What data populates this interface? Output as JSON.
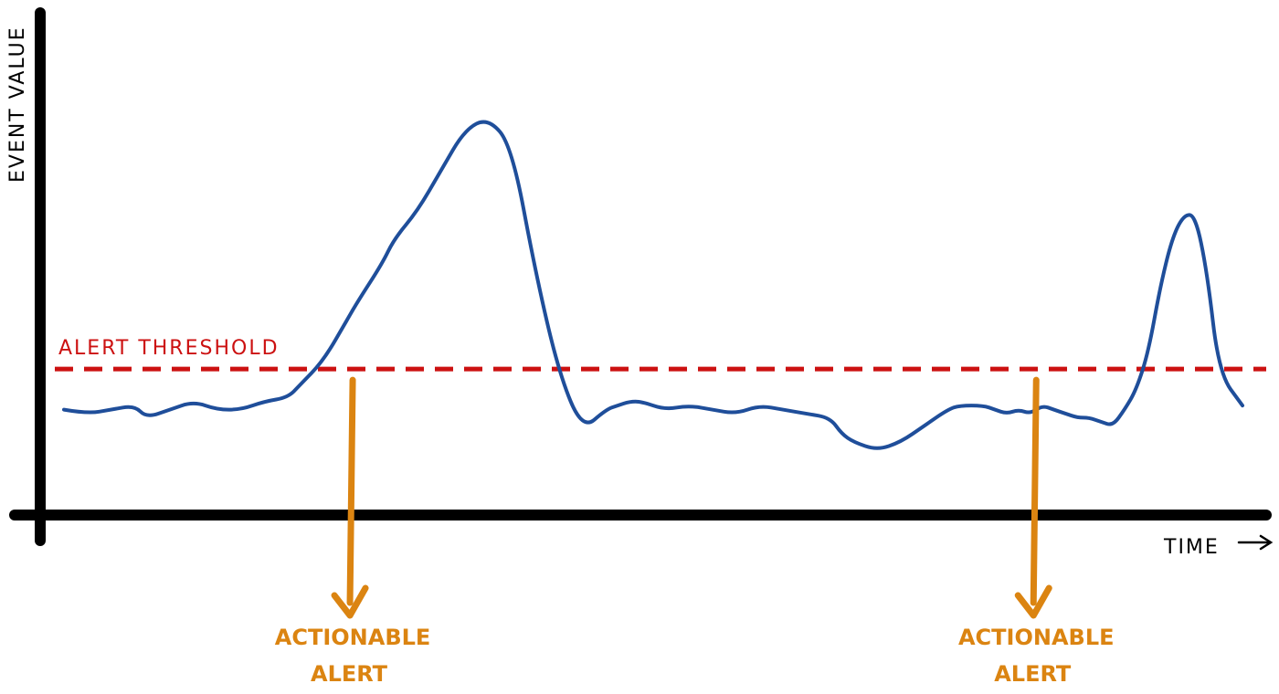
{
  "chart_data": {
    "type": "line",
    "title": "",
    "xlabel": "TIME",
    "ylabel": "EVENT VALUE",
    "x_range": [
      0,
      100
    ],
    "y_range": [
      0,
      100
    ],
    "grid": false,
    "series": [
      {
        "color": "#1f4e9a",
        "x": [
          0,
          2,
          4,
          6,
          7,
          9,
          11,
          13,
          15,
          17,
          19,
          20,
          22,
          24,
          25,
          27,
          28,
          30,
          32,
          34,
          36,
          38,
          40,
          42,
          44,
          46,
          47,
          48,
          49,
          51,
          53,
          55,
          57,
          59,
          61,
          63,
          65,
          66,
          67,
          69,
          71,
          73,
          75,
          76,
          78,
          79,
          80,
          81,
          82,
          83,
          84,
          85,
          86,
          87,
          88,
          89,
          90,
          91,
          92,
          93,
          94,
          95,
          96,
          97,
          98,
          100
        ],
        "y": [
          26,
          25,
          26,
          27,
          24,
          26,
          28,
          26,
          26,
          28,
          29,
          32,
          38,
          48,
          53,
          62,
          68,
          75,
          85,
          95,
          98,
          91,
          60,
          35,
          21,
          26,
          27,
          28,
          28,
          26,
          27,
          26,
          25,
          27,
          26,
          25,
          24,
          20,
          18,
          16,
          18,
          22,
          26,
          27,
          27,
          26,
          25,
          26,
          25,
          27,
          26,
          25,
          24,
          24,
          23,
          22,
          26,
          31,
          40,
          56,
          68,
          74,
          74,
          60,
          35,
          27
        ]
      }
    ],
    "threshold": {
      "label": "ALERT THRESHOLD",
      "value": 36,
      "color": "#cc1111"
    },
    "annotations": [
      {
        "label_line1": "ACTIONABLE",
        "label_line2": "ALERT",
        "x": 24.5,
        "color": "#db8411"
      },
      {
        "label_line1": "ACTIONABLE",
        "label_line2": "ALERT",
        "x": 82.5,
        "color": "#db8411"
      }
    ]
  }
}
